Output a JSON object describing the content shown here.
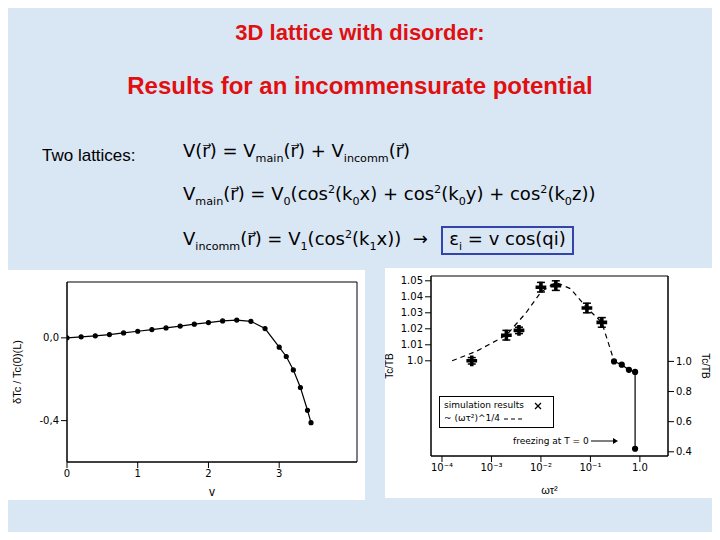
{
  "title": "3D lattice with disorder:",
  "subtitle": "Results for an incommensurate potential",
  "formula_label": "Two lattices:",
  "formulas": [
    {
      "parts": [
        "V(r⃗) = V",
        {
          "sub": "main"
        },
        "(r⃗) + V",
        {
          "sub": "incomm"
        },
        "(r⃗)"
      ]
    },
    {
      "parts": [
        "V",
        {
          "sub": "main"
        },
        "(r⃗) = V",
        {
          "sub": "0"
        },
        "(cos",
        {
          "sup": "2"
        },
        "(k",
        {
          "sub": "0"
        },
        "x) + cos",
        {
          "sup": "2"
        },
        "(k",
        {
          "sub": "0"
        },
        "y) + cos",
        {
          "sup": "2"
        },
        "(k",
        {
          "sub": "0"
        },
        "z))"
      ]
    },
    {
      "parts": [
        "V",
        {
          "sub": "incomm"
        },
        "(r⃗) = V",
        {
          "sub": "1"
        },
        "(cos",
        {
          "sup": "2"
        },
        "(k",
        {
          "sub": "1"
        },
        "x))  →  "
      ],
      "boxed": [
        "ε",
        {
          "sub": "i"
        },
        " = v cos(qi)"
      ]
    }
  ],
  "chart_data": [
    {
      "type": "line",
      "xlabel": "v",
      "ylabel": "δTc / Tc(0)(L)",
      "x": [
        0,
        0.2,
        0.4,
        0.6,
        0.8,
        1.0,
        1.2,
        1.4,
        1.6,
        1.8,
        2.0,
        2.2,
        2.4,
        2.6,
        2.8,
        3.0,
        3.1,
        3.2,
        3.3,
        3.4,
        3.45
      ],
      "values": [
        0,
        0.005,
        0.01,
        0.016,
        0.024,
        0.032,
        0.04,
        0.048,
        0.057,
        0.066,
        0.074,
        0.082,
        0.086,
        0.08,
        0.045,
        -0.045,
        -0.09,
        -0.155,
        -0.24,
        -0.35,
        -0.41
      ],
      "xlim": [
        0,
        4.1
      ],
      "xticks": [
        0,
        1,
        2,
        3
      ],
      "ylim": [
        -0.6,
        0.27
      ],
      "yticks": [
        {
          "value": 0,
          "label": "0,0"
        },
        {
          "value": -0.4,
          "label": "-0,4"
        }
      ],
      "color": "#000000",
      "marker": "circle"
    },
    {
      "type": "scatter",
      "xlabel": "ωτ²",
      "ylabel": "Tc/TB",
      "y2label": "Tc/TB",
      "log": "x",
      "xlim": [
        6e-05,
        3.7
      ],
      "xticks": [
        {
          "value": 0.0001,
          "label": "10⁻⁴"
        },
        {
          "value": 0.001,
          "label": "10⁻³"
        },
        {
          "value": 0.01,
          "label": "10⁻²"
        },
        {
          "value": 0.1,
          "label": "10⁻¹"
        },
        {
          "value": 1,
          "label": "1.0"
        }
      ],
      "ylim": [
        0.9405,
        1.053
      ],
      "yticks": [
        {
          "value": 1,
          "label": "1.0"
        },
        1.01,
        1.02,
        1.03,
        1.04,
        1.05
      ],
      "y2lim": [
        0.372,
        1.567
      ],
      "y2ticks": [
        0.4,
        0.6,
        0.8,
        {
          "value": 1,
          "label": "1.0"
        }
      ],
      "legend": "lower left",
      "annotation": "freezing at T = 0",
      "series": [
        {
          "name": "simulation results",
          "type": "scatter",
          "color": "#000000",
          "marker": "cross",
          "x": [
            0.0004,
            0.002,
            0.0036,
            0.01,
            0.02,
            0.085,
            0.17
          ],
          "values": [
            1.0,
            1.016,
            1.019,
            1.046,
            1.047,
            1.033,
            1.024
          ],
          "errors": [
            0.002,
            0.003,
            0.002,
            0.003,
            0.003,
            0.003,
            0.003
          ]
        },
        {
          "name": "~ (ωτ²)^1/4",
          "type": "line",
          "color": "#000000",
          "line_style": "dashed",
          "x": [
            0.00016,
            0.0005,
            0.002,
            0.005,
            0.01,
            0.02,
            0.04,
            0.085,
            0.17,
            0.3
          ],
          "values": [
            1.0,
            1.006,
            1.016,
            1.03,
            1.043,
            1.049,
            1.045,
            1.033,
            1.024,
            1.0
          ]
        },
        {
          "type": "line",
          "axis": "y2",
          "color": "#000000",
          "marker": "circle",
          "x": [
            0.3,
            0.43,
            0.6,
            0.8,
            0.8
          ],
          "values": [
            1.0,
            0.978,
            0.944,
            0.93,
            0.42
          ]
        }
      ]
    }
  ]
}
